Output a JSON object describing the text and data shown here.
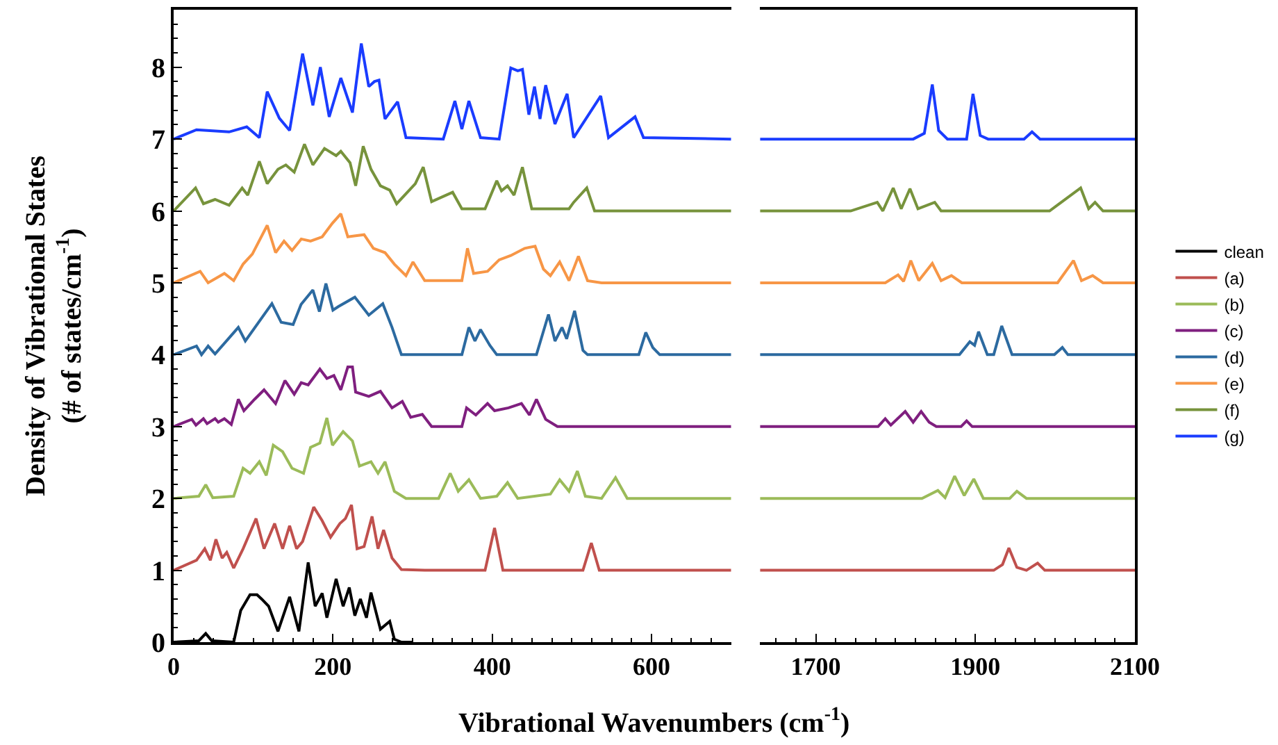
{
  "chart_data": [
    {
      "type": "line",
      "xlabel": "Vibrational Wavenumbers (cm$^{-1}$)",
      "ylabel": "Density of Vibrational States\n(# of states/cm$^{-1}$)",
      "xlim": [
        0,
        700
      ],
      "xticks": [
        0,
        200,
        400,
        600
      ],
      "ylim": [
        0,
        8.8
      ],
      "yticks": [
        0,
        1,
        2,
        3,
        4,
        5,
        6,
        7,
        8
      ],
      "legend": "right",
      "marker": "none",
      "line_style": "solid",
      "series": [
        {
          "name": "clean",
          "color": "#000000",
          "x": [
            0,
            31.6,
            40.3,
            47.9,
            75.4,
            84.2,
            95.9,
            104.7,
            110.5,
            119.3,
            131,
            145.6,
            157.3,
            168.9,
            177.7,
            186.5,
            192.4,
            204,
            212.8,
            220.5,
            227.5,
            234.5,
            242.1,
            247.8,
            259.6,
            271.3,
            277.1,
            286,
            300
          ],
          "values": [
            0,
            0.02,
            0.12,
            0.02,
            0,
            0.44,
            0.66,
            0.66,
            0.6,
            0.5,
            0.15,
            0.63,
            0.15,
            1.11,
            0.5,
            0.68,
            0.34,
            0.88,
            0.5,
            0.76,
            0.37,
            0.6,
            0.34,
            0.69,
            0.18,
            0.29,
            0.04,
            0,
            0
          ]
        },
        {
          "name": "(a)",
          "color": "#c0504d",
          "x": [
            0,
            28.7,
            39.1,
            46.1,
            53.1,
            60.9,
            66.7,
            75.4,
            87.2,
            103.5,
            113.5,
            126.8,
            136.8,
            145.6,
            154.4,
            161.9,
            175.9,
            186.5,
            197,
            208.7,
            215.7,
            223.3,
            230.3,
            239.1,
            249.1,
            256.6,
            263.6,
            274.2,
            286,
            315.2,
            391,
            402.9,
            413.4,
            513.9,
            524.4,
            534.4,
            700
          ],
          "values": [
            1,
            1.14,
            1.3,
            1.14,
            1.43,
            1.17,
            1.25,
            1.03,
            1.3,
            1.72,
            1.3,
            1.65,
            1.3,
            1.62,
            1.3,
            1.4,
            1.88,
            1.69,
            1.46,
            1.65,
            1.72,
            1.91,
            1.3,
            1.33,
            1.75,
            1.3,
            1.56,
            1.17,
            1.01,
            1,
            1,
            1.59,
            1,
            1,
            1.38,
            1,
            1
          ]
        },
        {
          "name": "(b)",
          "color": "#9bbb59",
          "x": [
            0,
            31.6,
            40.3,
            49.1,
            75.4,
            87.2,
            95.9,
            107.6,
            116.3,
            125.1,
            136.8,
            148.6,
            163.1,
            171.9,
            183.6,
            192.4,
            199.4,
            212.8,
            224.5,
            233.3,
            247.8,
            256.6,
            265.4,
            277.1,
            291.7,
            332.7,
            347.3,
            357.3,
            370.7,
            385.3,
            405.7,
            419.2,
            432,
            473,
            484.7,
            496.4,
            506.9,
            516.9,
            537.3,
            554.8,
            569.5,
            700
          ],
          "values": [
            2,
            2.03,
            2.19,
            2.01,
            2.03,
            2.42,
            2.35,
            2.51,
            2.32,
            2.74,
            2.65,
            2.42,
            2.35,
            2.71,
            2.77,
            3.12,
            2.74,
            2.93,
            2.8,
            2.45,
            2.51,
            2.35,
            2.51,
            2.1,
            2,
            2,
            2.35,
            2.1,
            2.26,
            2,
            2.03,
            2.22,
            2,
            2.06,
            2.26,
            2.1,
            2.38,
            2.03,
            2,
            2.29,
            2,
            2
          ]
        },
        {
          "name": "(c)",
          "color": "#7f1f7f",
          "x": [
            0,
            22.8,
            28,
            37.4,
            42,
            52,
            56,
            63.7,
            72.4,
            81.2,
            88.2,
            101.7,
            113.5,
            128,
            139.8,
            151.4,
            160.2,
            168.9,
            183.6,
            192.4,
            201.2,
            209.9,
            218.7,
            224.5,
            228.5,
            245,
            259.6,
            274.2,
            287.1,
            297.6,
            312.2,
            323.9,
            361.9,
            367.8,
            379.4,
            394.1,
            402.9,
            420.4,
            436.7,
            446.7,
            455.5,
            467.1,
            481.8,
            700
          ],
          "values": [
            3,
            3.1,
            3.02,
            3.11,
            3.04,
            3.11,
            3.06,
            3.11,
            3.03,
            3.38,
            3.22,
            3.38,
            3.51,
            3.32,
            3.64,
            3.45,
            3.61,
            3.58,
            3.8,
            3.67,
            3.71,
            3.51,
            3.83,
            3.83,
            3.48,
            3.42,
            3.49,
            3.26,
            3.35,
            3.13,
            3.17,
            3,
            3,
            3.26,
            3.16,
            3.32,
            3.22,
            3.26,
            3.32,
            3.16,
            3.38,
            3.1,
            3,
            3
          ]
        },
        {
          "name": "(d)",
          "color": "#2c6aa0",
          "x": [
            0,
            28.7,
            35,
            43.3,
            52,
            81.2,
            90,
            123.4,
            135,
            150,
            160,
            174.8,
            183,
            191.2,
            200,
            207,
            227.5,
            245,
            262.6,
            274.2,
            280,
            286,
            361.9,
            370.7,
            378.3,
            385.3,
            397,
            405.7,
            455.5,
            470.6,
            478.8,
            487.6,
            493.4,
            503.4,
            513.9,
            519.7,
            584,
            592.8,
            601.6,
            610.3,
            700
          ],
          "values": [
            4,
            4.12,
            4,
            4.12,
            4.01,
            4.38,
            4.19,
            4.71,
            4.45,
            4.42,
            4.7,
            4.9,
            4.6,
            4.99,
            4.62,
            4.67,
            4.8,
            4.55,
            4.71,
            4.38,
            4.19,
            4,
            4,
            4.38,
            4.19,
            4.35,
            4.13,
            4,
            4,
            4.56,
            4.19,
            4.38,
            4.22,
            4.61,
            4.06,
            4,
            4,
            4.31,
            4.1,
            4,
            4
          ]
        },
        {
          "name": "(e)",
          "color": "#f79646",
          "x": [
            0,
            33.3,
            43.3,
            63.7,
            75.4,
            87.2,
            98.8,
            117.5,
            128,
            138.6,
            148.6,
            160.2,
            171.9,
            186.5,
            199.4,
            209.9,
            218.7,
            239.1,
            250.8,
            265.4,
            277.1,
            291.7,
            300.5,
            315.2,
            361.9,
            368.9,
            376.6,
            394.1,
            408.7,
            423.3,
            440.8,
            453.8,
            464.3,
            473,
            484.7,
            496.4,
            508.2,
            519.7,
            537.3,
            700
          ],
          "values": [
            5,
            5.16,
            5,
            5.13,
            5.03,
            5.26,
            5.4,
            5.8,
            5.42,
            5.58,
            5.45,
            5.61,
            5.58,
            5.64,
            5.83,
            5.96,
            5.64,
            5.67,
            5.48,
            5.42,
            5.26,
            5.1,
            5.29,
            5.03,
            5.03,
            5.48,
            5.13,
            5.16,
            5.32,
            5.38,
            5.48,
            5.51,
            5.19,
            5.1,
            5.29,
            5.03,
            5.37,
            5.03,
            5,
            5
          ]
        },
        {
          "name": "(f)",
          "color": "#77933c",
          "x": [
            0,
            27.5,
            37.4,
            52,
            69.6,
            86,
            93,
            107.6,
            117.5,
            131,
            140.9,
            151.4,
            164.3,
            174.8,
            189.4,
            204,
            209.9,
            221.5,
            228.5,
            238,
            247.8,
            259.6,
            271.3,
            280,
            303.4,
            313.4,
            323.9,
            350.3,
            361.9,
            391,
            405.7,
            411.6,
            419.2,
            427.4,
            437.9,
            449.6,
            496.4,
            502.2,
            518.7,
            528.5,
            700
          ],
          "values": [
            6,
            6.32,
            6.1,
            6.16,
            6.08,
            6.32,
            6.22,
            6.69,
            6.38,
            6.58,
            6.64,
            6.54,
            6.93,
            6.64,
            6.87,
            6.77,
            6.83,
            6.67,
            6.35,
            6.9,
            6.58,
            6.35,
            6.29,
            6.1,
            6.38,
            6.61,
            6.13,
            6.26,
            6.03,
            6.03,
            6.42,
            6.28,
            6.35,
            6.22,
            6.61,
            6.03,
            6.03,
            6.12,
            6.32,
            6,
            6
          ]
        },
        {
          "name": "(g)",
          "color": "#1a3cff",
          "x": [
            0,
            28.7,
            69.6,
            91.8,
            107.6,
            117.5,
            132.7,
            145.6,
            161.9,
            174.8,
            184.2,
            195.3,
            209.9,
            224.5,
            235.6,
            245,
            252,
            257.8,
            265.4,
            281.2,
            291.7,
            338.5,
            353.1,
            361.9,
            370.7,
            385.3,
            408.7,
            423.3,
            432,
            437.9,
            446,
            453.1,
            460,
            467.1,
            478.8,
            494,
            502.2,
            536.2,
            546,
            579.3,
            589.9,
            700
          ],
          "values": [
            7,
            7.13,
            7.1,
            7.17,
            7.02,
            7.66,
            7.29,
            7.12,
            8.19,
            7.47,
            8,
            7.31,
            7.85,
            7.37,
            8.33,
            7.73,
            7.8,
            7.82,
            7.28,
            7.52,
            7.02,
            7,
            7.53,
            7.14,
            7.53,
            7.02,
            7,
            7.99,
            7.95,
            7.97,
            7.34,
            7.73,
            7.28,
            7.75,
            7.21,
            7.63,
            7.02,
            7.6,
            7.02,
            7.31,
            7.02,
            7
          ]
        }
      ]
    },
    {
      "type": "line",
      "xlim": [
        1630,
        2100
      ],
      "xticks": [
        1700,
        1900,
        2100
      ],
      "ylim": [
        0,
        8.8
      ],
      "tick_labels": "x",
      "marker": "none",
      "line_style": "solid",
      "series": [
        {
          "color": "#c0504d",
          "x": [
            1630,
            1923,
            1934,
            1942,
            1952,
            1964,
            1978,
            1987,
            2100
          ],
          "values": [
            1,
            1,
            1.08,
            1.31,
            1.04,
            1,
            1.1,
            1,
            1
          ]
        },
        {
          "color": "#9bbb59",
          "x": [
            1630,
            1833,
            1853,
            1862,
            1874,
            1886,
            1898,
            1910,
            1943,
            1952,
            1964,
            2100
          ],
          "values": [
            2,
            2,
            2.11,
            2.01,
            2.31,
            2.04,
            2.27,
            2,
            2,
            2.1,
            2,
            2
          ]
        },
        {
          "color": "#7f1f7f",
          "x": [
            1630,
            1778,
            1787,
            1794,
            1812,
            1822,
            1832,
            1842,
            1851,
            1882,
            1889,
            1896,
            2100
          ],
          "values": [
            3,
            3,
            3.11,
            3.02,
            3.21,
            3.06,
            3.21,
            3.06,
            3,
            3,
            3.08,
            3,
            3
          ]
        },
        {
          "color": "#2c6aa0",
          "x": [
            1630,
            1880,
            1893,
            1899,
            1904,
            1915,
            1923,
            1933,
            1946,
            1999,
            2009,
            2016,
            2100
          ],
          "values": [
            4,
            4,
            4.18,
            4.13,
            4.32,
            4,
            4,
            4.4,
            4,
            4,
            4.1,
            4,
            4
          ]
        },
        {
          "color": "#f79646",
          "x": [
            1630,
            1787,
            1803,
            1810,
            1819,
            1829,
            1846,
            1857,
            1870,
            1883,
            2003,
            2023,
            2033,
            2047,
            2060,
            2100
          ],
          "values": [
            5,
            5,
            5.11,
            5.02,
            5.31,
            5.03,
            5.27,
            5.03,
            5.1,
            5,
            5,
            5.31,
            5.03,
            5.1,
            5,
            5
          ]
        },
        {
          "color": "#77933c",
          "x": [
            1630,
            1743.6,
            1777,
            1784,
            1797,
            1807,
            1818,
            1828,
            1849,
            1857,
            1993,
            2032,
            2042,
            2050,
            2060,
            2100
          ],
          "values": [
            6,
            6,
            6.12,
            6,
            6.32,
            6.03,
            6.31,
            6.03,
            6.12,
            6,
            6,
            6.32,
            6.03,
            6.12,
            6,
            6
          ]
        },
        {
          "color": "#1a3cff",
          "x": [
            1630,
            1822,
            1836,
            1846,
            1854,
            1865,
            1889,
            1897,
            1906,
            1916,
            1961,
            1971,
            1981,
            2100
          ],
          "values": [
            7,
            7,
            7.08,
            7.76,
            7.12,
            7,
            7,
            7.63,
            7.05,
            7,
            7,
            7.1,
            7,
            7
          ]
        }
      ]
    }
  ]
}
